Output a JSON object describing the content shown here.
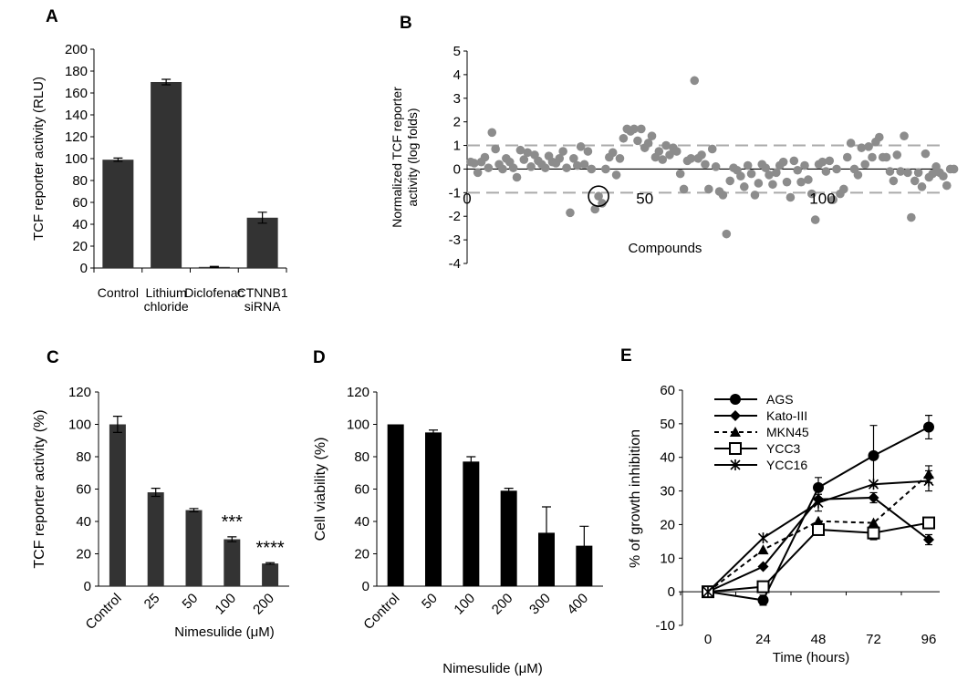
{
  "colors": {
    "bar_dark": "#333333",
    "bar_black": "#000000",
    "scatter_gray": "#8c8c8c",
    "dash_gray": "#aaaaaa"
  },
  "chart_data": [
    {
      "panel": "A",
      "type": "bar",
      "categories": [
        [
          "Control"
        ],
        [
          "Lithium",
          "chloride"
        ],
        [
          "Diclofenac"
        ],
        [
          "CTNNB1",
          "siRNA"
        ]
      ],
      "values": [
        99,
        170,
        1,
        46
      ],
      "errors": [
        1.5,
        2.5,
        0.5,
        5
      ],
      "ylabel": "TCF reporter activity (RLU)",
      "ylim": [
        0,
        200
      ],
      "yticks": [
        0,
        20,
        40,
        60,
        80,
        100,
        120,
        140,
        160,
        180,
        200
      ]
    },
    {
      "panel": "B",
      "type": "scatter",
      "xlabel": "Compounds",
      "ylabel": [
        "Normalized TCF reporter",
        "activity (log folds)"
      ],
      "ylim": [
        -4,
        5
      ],
      "yticks": [
        -4,
        -3,
        -2,
        -1,
        0,
        1,
        2,
        3,
        4,
        5
      ],
      "xlim": [
        0,
        133
      ],
      "xtick_labels": [
        0,
        50,
        100
      ],
      "threshold_lines": [
        1,
        -1
      ],
      "highlighted_compound": {
        "x": 37,
        "y": -1.15
      },
      "points": [
        [
          1,
          0.3
        ],
        [
          2,
          0.25
        ],
        [
          3,
          -0.15
        ],
        [
          4,
          0.3
        ],
        [
          5,
          0.5
        ],
        [
          6,
          0.05
        ],
        [
          7,
          1.55
        ],
        [
          8,
          0.85
        ],
        [
          9,
          0.2
        ],
        [
          10,
          0.0
        ],
        [
          11,
          0.45
        ],
        [
          12,
          0.3
        ],
        [
          13,
          0.05
        ],
        [
          14,
          -0.35
        ],
        [
          15,
          0.8
        ],
        [
          16,
          0.4
        ],
        [
          17,
          0.7
        ],
        [
          18,
          0.1
        ],
        [
          19,
          0.6
        ],
        [
          20,
          0.35
        ],
        [
          21,
          0.2
        ],
        [
          22,
          0.05
        ],
        [
          23,
          0.55
        ],
        [
          24,
          0.3
        ],
        [
          25,
          0.25
        ],
        [
          26,
          0.45
        ],
        [
          27,
          0.75
        ],
        [
          28,
          0.05
        ],
        [
          29,
          -1.85
        ],
        [
          30,
          0.45
        ],
        [
          31,
          0.15
        ],
        [
          32,
          0.95
        ],
        [
          33,
          0.2
        ],
        [
          34,
          0.75
        ],
        [
          35,
          0.0
        ],
        [
          36,
          -1.7
        ],
        [
          37,
          -1.15
        ],
        [
          38,
          -1.45
        ],
        [
          39,
          0.0
        ],
        [
          40,
          0.5
        ],
        [
          41,
          0.7
        ],
        [
          42,
          -0.25
        ],
        [
          43,
          0.45
        ],
        [
          44,
          1.3
        ],
        [
          45,
          1.7
        ],
        [
          46,
          1.6
        ],
        [
          47,
          1.7
        ],
        [
          48,
          1.2
        ],
        [
          49,
          1.7
        ],
        [
          50,
          0.9
        ],
        [
          51,
          1.1
        ],
        [
          52,
          1.4
        ],
        [
          53,
          0.5
        ],
        [
          54,
          0.75
        ],
        [
          55,
          0.4
        ],
        [
          56,
          1.0
        ],
        [
          57,
          0.6
        ],
        [
          58,
          0.9
        ],
        [
          59,
          0.75
        ],
        [
          60,
          -0.2
        ],
        [
          61,
          -0.85
        ],
        [
          62,
          0.35
        ],
        [
          63,
          0.45
        ],
        [
          64,
          3.75
        ],
        [
          65,
          0.45
        ],
        [
          66,
          0.6
        ],
        [
          67,
          0.2
        ],
        [
          68,
          -0.85
        ],
        [
          69,
          0.85
        ],
        [
          70,
          0.1
        ],
        [
          71,
          -0.95
        ],
        [
          72,
          -1.1
        ],
        [
          73,
          -2.75
        ],
        [
          74,
          -0.5
        ],
        [
          75,
          0.05
        ],
        [
          76,
          -0.05
        ],
        [
          77,
          -0.3
        ],
        [
          78,
          -0.75
        ],
        [
          79,
          0.15
        ],
        [
          80,
          -0.2
        ],
        [
          81,
          -1.1
        ],
        [
          82,
          -0.6
        ],
        [
          83,
          0.2
        ],
        [
          84,
          0.05
        ],
        [
          85,
          -0.25
        ],
        [
          86,
          -0.65
        ],
        [
          87,
          -0.15
        ],
        [
          88,
          0.15
        ],
        [
          89,
          0.3
        ],
        [
          90,
          -0.55
        ],
        [
          91,
          -1.2
        ],
        [
          92,
          0.35
        ],
        [
          93,
          -0.05
        ],
        [
          94,
          -0.55
        ],
        [
          95,
          0.15
        ],
        [
          96,
          -0.45
        ],
        [
          97,
          -1.05
        ],
        [
          98,
          -2.15
        ],
        [
          99,
          0.2
        ],
        [
          100,
          0.3
        ],
        [
          101,
          -0.1
        ],
        [
          102,
          0.35
        ],
        [
          103,
          -1.3
        ],
        [
          104,
          0.0
        ],
        [
          105,
          -1.05
        ],
        [
          106,
          -0.85
        ],
        [
          107,
          0.5
        ],
        [
          108,
          1.1
        ],
        [
          109,
          0.0
        ],
        [
          110,
          -0.25
        ],
        [
          111,
          0.9
        ],
        [
          112,
          0.2
        ],
        [
          113,
          0.95
        ],
        [
          114,
          0.5
        ],
        [
          115,
          1.15
        ],
        [
          116,
          1.35
        ],
        [
          117,
          0.5
        ],
        [
          118,
          0.5
        ],
        [
          119,
          -0.1
        ],
        [
          120,
          -0.5
        ],
        [
          121,
          0.6
        ],
        [
          122,
          -0.1
        ],
        [
          123,
          1.4
        ],
        [
          124,
          -0.15
        ],
        [
          125,
          -2.05
        ],
        [
          126,
          -0.5
        ],
        [
          127,
          -0.15
        ],
        [
          128,
          -0.75
        ],
        [
          129,
          0.65
        ],
        [
          130,
          -0.35
        ],
        [
          131,
          -0.2
        ],
        [
          132,
          0.1
        ],
        [
          133,
          -0.15
        ],
        [
          134,
          -0.3
        ],
        [
          135,
          -0.7
        ],
        [
          136,
          0.0
        ],
        [
          137,
          0.0
        ]
      ]
    },
    {
      "panel": "C",
      "type": "bar",
      "categories": [
        "Control",
        "25",
        "50",
        "100",
        "200"
      ],
      "values": [
        100,
        58,
        47,
        29,
        14
      ],
      "errors": [
        5,
        2.5,
        1,
        1.5,
        0.5
      ],
      "annotations": [
        "",
        "",
        "",
        "***",
        "****"
      ],
      "xlabel": "Nimesulide (μM)",
      "ylabel": "TCF reporter activity (%)",
      "ylim": [
        0,
        120
      ],
      "yticks": [
        0,
        20,
        40,
        60,
        80,
        100,
        120
      ]
    },
    {
      "panel": "D",
      "type": "bar",
      "categories": [
        "Control",
        "50",
        "100",
        "200",
        "300",
        "400"
      ],
      "values": [
        100,
        95,
        77,
        59,
        33,
        25
      ],
      "errors": [
        0,
        1.5,
        3,
        1.5,
        16,
        12
      ],
      "xlabel": "Nimesulide (μM)",
      "ylabel": "Cell viability (%)",
      "ylim": [
        0,
        120
      ],
      "yticks": [
        0,
        20,
        40,
        60,
        80,
        100,
        120
      ]
    },
    {
      "panel": "E",
      "type": "line",
      "x": [
        0,
        24,
        48,
        72,
        96
      ],
      "xlabel": "Time (hours)",
      "ylabel": "% of growth inhibition",
      "ylim": [
        -10,
        60
      ],
      "yticks": [
        -10,
        0,
        10,
        20,
        30,
        40,
        50,
        60
      ],
      "legend_placement": "top-left",
      "series": [
        {
          "name": "AGS",
          "values": [
            0,
            -2.5,
            31,
            40.5,
            49
          ],
          "errors": [
            0,
            1.5,
            3,
            9,
            3.5
          ],
          "marker": "circle",
          "dash": "solid"
        },
        {
          "name": "Kato-III",
          "values": [
            0,
            7.5,
            27.5,
            28,
            15.5
          ],
          "errors": [
            0,
            0,
            0,
            1.5,
            1.5
          ],
          "marker": "diamond",
          "dash": "solid"
        },
        {
          "name": "MKN45",
          "values": [
            0,
            12.5,
            21,
            20.5,
            35
          ],
          "errors": [
            0,
            0,
            0,
            0,
            2.5
          ],
          "marker": "triangle",
          "dash": "dashed"
        },
        {
          "name": "YCC3",
          "values": [
            0,
            1.5,
            18.5,
            17.5,
            20.5
          ],
          "errors": [
            0,
            0,
            1.5,
            2,
            0
          ],
          "marker": "square",
          "dash": "solid"
        },
        {
          "name": "YCC16",
          "values": [
            0,
            16,
            26.5,
            32,
            33
          ],
          "errors": [
            0,
            0,
            2.5,
            0,
            3
          ],
          "marker": "star",
          "dash": "solid"
        }
      ]
    }
  ]
}
